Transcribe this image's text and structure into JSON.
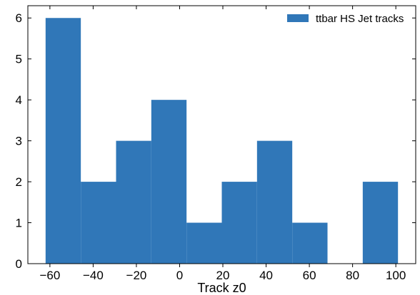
{
  "chart_data": {
    "type": "bar",
    "bins": [
      {
        "x0": -62.0,
        "x1": -45.7,
        "count": 6
      },
      {
        "x0": -45.7,
        "x1": -29.4,
        "count": 2
      },
      {
        "x0": -29.4,
        "x1": -13.1,
        "count": 3
      },
      {
        "x0": -13.1,
        "x1": 3.2,
        "count": 4
      },
      {
        "x0": 3.2,
        "x1": 19.5,
        "count": 1
      },
      {
        "x0": 19.5,
        "x1": 35.8,
        "count": 2
      },
      {
        "x0": 35.8,
        "x1": 52.1,
        "count": 3
      },
      {
        "x0": 52.1,
        "x1": 68.4,
        "count": 1
      },
      {
        "x0": 68.4,
        "x1": 84.7,
        "count": 0
      },
      {
        "x0": 84.7,
        "x1": 101.0,
        "count": 2
      }
    ],
    "series_name": "ttbar HS Jet tracks",
    "color": "#3077b8",
    "xlabel": "Track z0",
    "ylabel": "",
    "xlim": [
      -70.2,
      109.2
    ],
    "ylim": [
      0,
      6.3
    ],
    "xticks": [
      -60,
      -40,
      -20,
      0,
      20,
      40,
      60,
      80,
      100
    ],
    "yticks": [
      0,
      1,
      2,
      3,
      4,
      5,
      6
    ],
    "legend": "top-right",
    "grid": false
  }
}
